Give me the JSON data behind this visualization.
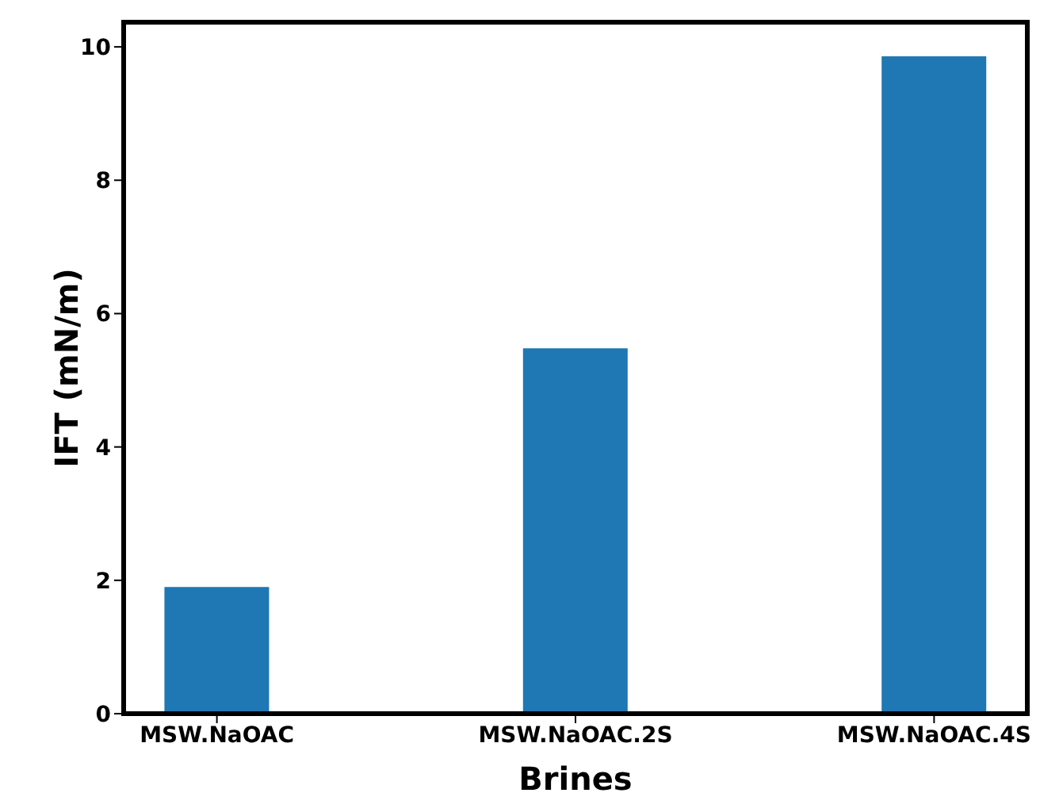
{
  "chart_data": {
    "type": "bar",
    "xlabel": "Brines",
    "ylabel": "IFT (mN/m)",
    "categories": [
      "MSW.NaOAC",
      "MSW.NaOAC.2S",
      "MSW.NaOAC.4S"
    ],
    "values": [
      1.9,
      5.48,
      9.86
    ],
    "color": "#1f77b4",
    "ylim": [
      0,
      10.37
    ],
    "yticks": [
      0,
      2,
      4,
      6,
      8,
      10
    ]
  }
}
